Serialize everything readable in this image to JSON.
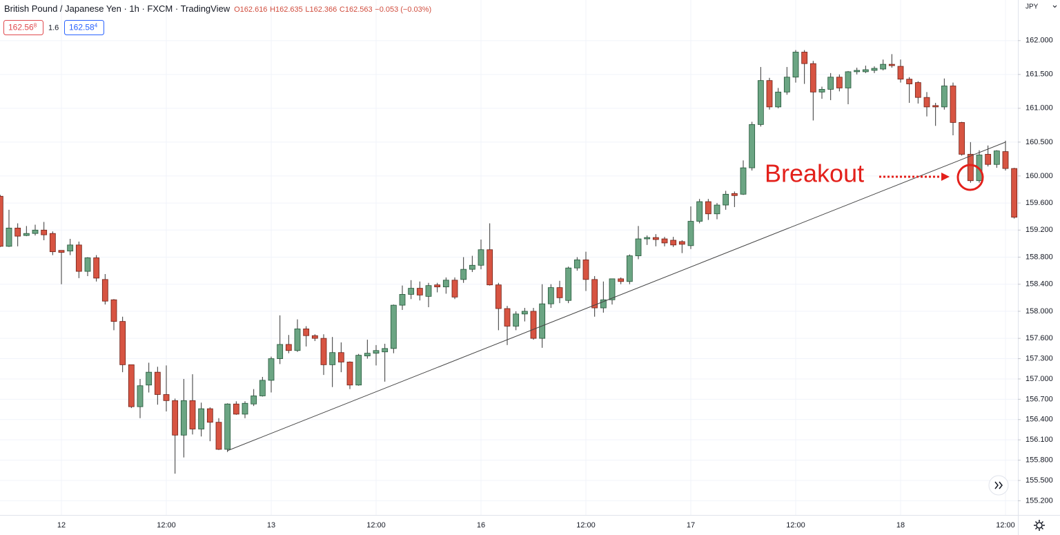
{
  "header": {
    "title": "British Pound / Japanese Yen · 1h · FXCM · TradingView",
    "ohlc": [
      "O162.616",
      "H162.635",
      "L162.366",
      "C162.563",
      "−0.053 (−0.03%)"
    ],
    "bid": {
      "main": "162.56",
      "pip": "8"
    },
    "spread": "1.6",
    "ask": {
      "main": "162.58",
      "pip": "4"
    }
  },
  "chart_data": {
    "type": "candlestick",
    "currency": "JPY",
    "annotation": "Breakout",
    "up_color": "#6ba583",
    "down_color": "#d75442",
    "up_border": "#225437",
    "down_border": "#6e2016",
    "wick_color": "#333333",
    "grid": true,
    "ylim": [
      155.0,
      162.6
    ],
    "yticks": [
      {
        "value": 162,
        "label": "162.000"
      },
      {
        "value": 161.5,
        "label": "161.500"
      },
      {
        "value": 161,
        "label": "161.000"
      },
      {
        "value": 160.5,
        "label": "160.500"
      },
      {
        "value": 160,
        "label": "160.000"
      },
      {
        "value": 159.6,
        "label": "159.600"
      },
      {
        "value": 159.2,
        "label": "159.200"
      },
      {
        "value": 158.8,
        "label": "158.800"
      },
      {
        "value": 158.4,
        "label": "158.400"
      },
      {
        "value": 158,
        "label": "158.000"
      },
      {
        "value": 157.6,
        "label": "157.600"
      },
      {
        "value": 157.3,
        "label": "157.300"
      },
      {
        "value": 157,
        "label": "157.000"
      },
      {
        "value": 156.7,
        "label": "156.700"
      },
      {
        "value": 156.4,
        "label": "156.400"
      },
      {
        "value": 156.1,
        "label": "156.100"
      },
      {
        "value": 155.8,
        "label": "155.800"
      },
      {
        "value": 155.5,
        "label": "155.500"
      },
      {
        "value": 155.2,
        "label": "155.200"
      }
    ],
    "categories": [
      null,
      null,
      null,
      null,
      null,
      null,
      null,
      "12",
      null,
      null,
      null,
      null,
      null,
      null,
      null,
      null,
      null,
      null,
      null,
      "12:00",
      null,
      null,
      null,
      null,
      null,
      null,
      null,
      null,
      null,
      null,
      null,
      "13",
      null,
      null,
      null,
      null,
      null,
      null,
      null,
      null,
      null,
      null,
      null,
      "12:00",
      null,
      null,
      null,
      null,
      null,
      null,
      null,
      null,
      null,
      null,
      null,
      "16",
      null,
      null,
      null,
      null,
      null,
      null,
      null,
      null,
      null,
      null,
      null,
      "12:00",
      null,
      null,
      null,
      null,
      null,
      null,
      null,
      null,
      null,
      null,
      null,
      "17",
      null,
      null,
      null,
      null,
      null,
      null,
      null,
      null,
      null,
      null,
      null,
      "12:00",
      null,
      null,
      null,
      null,
      null,
      null,
      null,
      null,
      null,
      null,
      null,
      "18",
      null,
      null,
      null,
      null,
      null,
      null,
      null,
      null,
      null,
      null,
      null,
      "12:00",
      null
    ],
    "open": [
      159.7,
      158.96,
      159.23,
      159.12,
      159.15,
      159.2,
      159.15,
      158.9,
      158.89,
      158.98,
      158.59,
      158.79,
      158.47,
      158.17,
      157.85,
      157.21,
      156.59,
      156.91,
      157.1,
      156.77,
      156.68,
      156.17,
      156.68,
      156.26,
      156.56,
      156.36,
      155.96,
      156.63,
      156.48,
      156.63,
      156.75,
      156.98,
      157.3,
      157.51,
      157.42,
      157.74,
      157.64,
      157.6,
      157.21,
      157.39,
      157.25,
      156.91,
      157.34,
      157.38,
      157.4,
      157.45,
      158.09,
      158.25,
      158.34,
      158.22,
      158.39,
      158.36,
      158.46,
      158.47,
      158.62,
      158.68,
      158.91,
      158.39,
      158.04,
      157.78,
      157.96,
      158.0,
      157.6,
      158.11,
      158.35,
      158.16,
      158.64,
      158.76,
      158.47,
      158.05,
      158.17,
      158.48,
      158.44,
      158.82,
      159.07,
      159.09,
      159.07,
      159.05,
      159.03,
      158.97,
      159.33,
      159.62,
      159.44,
      159.57,
      159.74,
      159.73,
      160.12,
      160.76,
      161.41,
      161.02,
      161.24,
      161.46,
      161.83,
      161.66,
      161.24,
      161.28,
      161.46,
      161.3,
      161.54,
      161.54,
      161.56,
      161.58,
      161.65,
      161.62,
      161.43,
      161.38,
      161.16,
      161.04,
      161.02,
      161.33,
      160.79,
      160.32,
      159.93,
      160.32,
      160.17,
      160.36,
      160.11
    ],
    "high": [
      159.72,
      159.5,
      159.3,
      159.26,
      159.28,
      159.32,
      159.18,
      158.9,
      159.07,
      159.03,
      158.8,
      158.83,
      158.55,
      158.18,
      157.92,
      157.21,
      157.0,
      157.24,
      157.18,
      157.2,
      156.71,
      157.0,
      157.07,
      156.65,
      156.58,
      156.42,
      156.64,
      156.67,
      156.67,
      156.85,
      157.03,
      157.33,
      157.94,
      157.65,
      157.88,
      157.78,
      157.66,
      157.66,
      157.62,
      157.54,
      157.26,
      157.37,
      157.58,
      157.5,
      157.52,
      158.1,
      158.38,
      158.46,
      158.44,
      158.42,
      158.42,
      158.5,
      158.5,
      158.8,
      158.82,
      159.06,
      159.3,
      158.42,
      158.08,
      158.0,
      158.05,
      158.05,
      158.4,
      158.4,
      158.45,
      158.66,
      158.8,
      158.88,
      158.52,
      158.44,
      158.48,
      158.5,
      158.84,
      159.26,
      159.12,
      159.14,
      159.1,
      159.1,
      159.05,
      159.55,
      159.66,
      159.66,
      159.6,
      159.78,
      159.77,
      160.23,
      160.8,
      161.61,
      161.45,
      161.3,
      161.61,
      161.86,
      161.86,
      161.7,
      161.32,
      161.52,
      161.5,
      161.55,
      161.6,
      161.63,
      161.62,
      161.72,
      161.8,
      161.72,
      161.46,
      161.4,
      161.24,
      161.08,
      161.44,
      161.38,
      160.8,
      160.5,
      160.38,
      160.45,
      160.38,
      160.52,
      160.12
    ],
    "low": [
      158.95,
      158.95,
      158.96,
      159.11,
      159.12,
      159.05,
      158.83,
      158.4,
      158.83,
      158.49,
      158.52,
      158.44,
      158.1,
      157.72,
      157.1,
      156.57,
      156.42,
      156.8,
      156.62,
      156.52,
      155.6,
      155.84,
      156.18,
      156.15,
      156.08,
      155.95,
      155.92,
      156.47,
      156.42,
      156.6,
      156.74,
      156.8,
      157.22,
      157.38,
      157.4,
      157.48,
      157.56,
      157.06,
      156.88,
      157.1,
      156.85,
      156.9,
      157.3,
      157.2,
      156.96,
      157.38,
      158.02,
      158.18,
      158.16,
      158.06,
      158.28,
      158.26,
      158.18,
      158.42,
      158.58,
      158.62,
      158.38,
      157.72,
      157.5,
      157.72,
      157.85,
      157.58,
      157.46,
      158.05,
      158.12,
      158.12,
      158.6,
      158.3,
      157.92,
      157.98,
      158.1,
      158.4,
      158.4,
      158.77,
      158.98,
      158.96,
      158.96,
      158.95,
      158.86,
      158.92,
      159.3,
      159.35,
      159.36,
      159.5,
      159.54,
      159.72,
      160.08,
      160.73,
      160.98,
      161.0,
      161.2,
      161.38,
      161.36,
      160.82,
      161.14,
      161.12,
      161.25,
      161.06,
      161.5,
      161.52,
      161.52,
      161.56,
      161.6,
      161.38,
      161.08,
      161.07,
      160.88,
      160.74,
      160.98,
      160.6,
      160.3,
      159.9,
      159.9,
      160.14,
      160.12,
      160.08,
      159.37
    ],
    "close": [
      158.96,
      159.23,
      159.11,
      159.15,
      159.2,
      159.13,
      158.88,
      158.87,
      158.98,
      158.59,
      158.79,
      158.49,
      158.15,
      157.85,
      157.21,
      156.59,
      156.9,
      157.1,
      156.77,
      156.68,
      156.17,
      156.68,
      156.26,
      156.56,
      156.36,
      155.96,
      156.63,
      156.48,
      156.64,
      156.75,
      156.98,
      157.3,
      157.51,
      157.42,
      157.74,
      157.64,
      157.6,
      157.21,
      157.39,
      157.25,
      156.91,
      157.35,
      157.38,
      157.42,
      157.45,
      158.09,
      158.25,
      158.34,
      158.24,
      158.38,
      158.36,
      158.46,
      158.21,
      158.62,
      158.68,
      158.91,
      158.39,
      158.04,
      157.78,
      157.96,
      158.0,
      157.6,
      158.11,
      158.35,
      158.2,
      158.64,
      158.76,
      158.47,
      158.05,
      158.17,
      158.48,
      158.44,
      158.82,
      159.07,
      159.09,
      159.06,
      159.01,
      158.98,
      158.99,
      159.33,
      159.62,
      159.44,
      159.57,
      159.73,
      159.71,
      160.12,
      160.76,
      161.41,
      161.02,
      161.24,
      161.46,
      161.83,
      161.66,
      161.24,
      161.28,
      161.46,
      161.3,
      161.54,
      161.56,
      161.57,
      161.59,
      161.65,
      161.63,
      161.43,
      161.36,
      161.16,
      161.02,
      161.02,
      161.33,
      160.79,
      160.32,
      159.93,
      160.31,
      160.17,
      160.37,
      160.11,
      159.39
    ],
    "trendline": {
      "x": [
        26,
        115
      ],
      "y": [
        155.94,
        160.5
      ]
    }
  }
}
